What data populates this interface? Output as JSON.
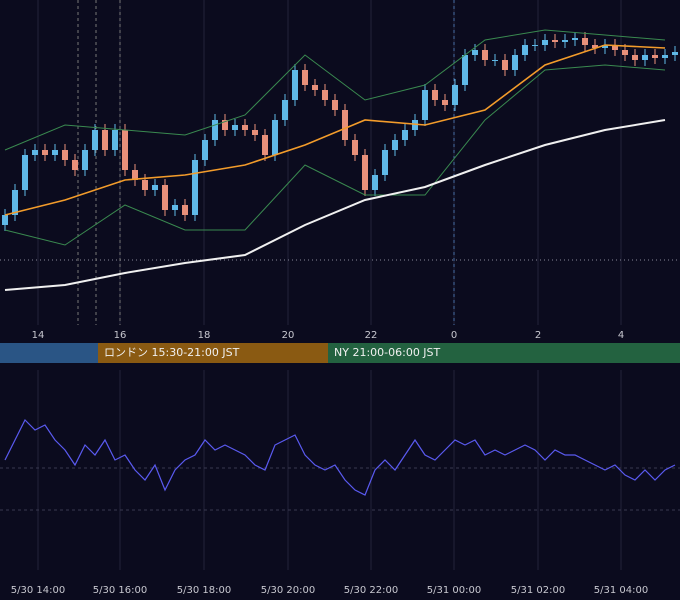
{
  "chart_data": [
    {
      "type": "candlestick",
      "xlim": [
        -0.5,
        67.5
      ],
      "ylim": [
        0,
        325
      ],
      "xticks": [
        {
          "value": 3.3,
          "label": "14"
        },
        {
          "value": 11.5,
          "label": "16"
        },
        {
          "value": 19.9,
          "label": "18"
        },
        {
          "value": 28.3,
          "label": "20"
        },
        {
          "value": 36.6,
          "label": "22"
        },
        {
          "value": 44.9,
          "label": "0"
        },
        {
          "value": 53.3,
          "label": "2"
        },
        {
          "value": 61.6,
          "label": "4"
        }
      ],
      "up_color": "#5fb8e6",
      "down_color": "#e8907a",
      "open": [
        100,
        110,
        135,
        170,
        175,
        170,
        175,
        165,
        155,
        175,
        195,
        175,
        195,
        155,
        145,
        135,
        140,
        115,
        120,
        110,
        165,
        185,
        205,
        195,
        200,
        195,
        190,
        170,
        205,
        225,
        255,
        240,
        235,
        225,
        215,
        185,
        170,
        135,
        150,
        175,
        185,
        195,
        205,
        235,
        225,
        220,
        240,
        270,
        275,
        265,
        265,
        255,
        270,
        280,
        280,
        285,
        283,
        285,
        287,
        280,
        277,
        280,
        275,
        270,
        265,
        270,
        267,
        270
      ],
      "high": [
        116,
        141,
        176,
        181,
        181,
        181,
        181,
        171,
        181,
        201,
        201,
        201,
        201,
        161,
        151,
        146,
        146,
        126,
        126,
        171,
        191,
        211,
        211,
        206,
        206,
        201,
        196,
        211,
        231,
        261,
        261,
        246,
        241,
        231,
        221,
        191,
        176,
        156,
        181,
        191,
        201,
        211,
        241,
        241,
        231,
        246,
        276,
        281,
        281,
        271,
        271,
        276,
        286,
        286,
        291,
        291,
        291,
        293,
        293,
        286,
        286,
        286,
        281,
        276,
        276,
        276,
        276,
        279
      ],
      "low": [
        94,
        104,
        129,
        164,
        164,
        164,
        159,
        149,
        149,
        169,
        169,
        169,
        149,
        139,
        129,
        129,
        109,
        109,
        104,
        104,
        159,
        179,
        189,
        189,
        189,
        184,
        164,
        164,
        199,
        219,
        234,
        229,
        219,
        209,
        179,
        164,
        129,
        129,
        144,
        169,
        179,
        189,
        199,
        219,
        214,
        214,
        234,
        264,
        259,
        259,
        249,
        249,
        264,
        274,
        274,
        277,
        277,
        279,
        274,
        271,
        271,
        269,
        264,
        259,
        259,
        261,
        261,
        264
      ],
      "close": [
        110,
        135,
        170,
        175,
        170,
        175,
        165,
        155,
        175,
        195,
        175,
        195,
        155,
        145,
        135,
        140,
        115,
        120,
        110,
        165,
        185,
        205,
        195,
        200,
        195,
        190,
        170,
        205,
        225,
        255,
        240,
        235,
        225,
        215,
        185,
        170,
        135,
        150,
        175,
        185,
        195,
        205,
        235,
        225,
        220,
        240,
        270,
        275,
        265,
        265,
        255,
        270,
        280,
        280,
        285,
        283,
        285,
        287,
        280,
        277,
        280,
        275,
        270,
        265,
        270,
        267,
        270,
        273
      ],
      "lines": [
        {
          "color": "#3a8a50",
          "x": [
            0,
            6,
            12,
            18,
            24,
            30,
            36,
            42,
            48,
            54,
            60,
            66
          ],
          "values": [
            175,
            200,
            195,
            190,
            210,
            270,
            225,
            240,
            285,
            295,
            290,
            285
          ]
        },
        {
          "color": "#3a8a50",
          "x": [
            0,
            6,
            12,
            18,
            24,
            30,
            36,
            42,
            48,
            54,
            60,
            66
          ],
          "values": [
            95,
            80,
            120,
            95,
            95,
            160,
            130,
            130,
            205,
            255,
            260,
            255
          ]
        },
        {
          "color": "#f0f0f0",
          "x": [
            0,
            6,
            12,
            18,
            24,
            30,
            36,
            42,
            48,
            54,
            60,
            66
          ],
          "values": [
            35,
            40,
            52,
            62,
            70,
            100,
            125,
            138,
            160,
            180,
            195,
            205
          ]
        },
        {
          "color": "#f39c2b",
          "x": [
            0,
            6,
            12,
            18,
            24,
            30,
            36,
            42,
            48,
            54,
            60,
            66
          ],
          "values": [
            110,
            125,
            145,
            150,
            160,
            180,
            205,
            200,
            215,
            260,
            280,
            277
          ]
        }
      ],
      "reference_line": 65,
      "vlines": [
        7.3,
        9.1,
        11.5,
        44.9
      ],
      "sessions": [
        {
          "start": -0.5,
          "end": 9.3,
          "color": "#2a5585"
        },
        {
          "start": 9.3,
          "end": 32.3,
          "color": "#8a5a12",
          "label": "ロンドン 15:30-21:00 JST"
        },
        {
          "start": 32.3,
          "end": 67.5,
          "color": "#236240",
          "label": "NY 21:00-06:00 JST"
        }
      ]
    },
    {
      "type": "line",
      "xlim": [
        -0.5,
        67.5
      ],
      "ylim": [
        0,
        200
      ],
      "xticks": [
        {
          "value": 3.3,
          "label": "5/30 14:00"
        },
        {
          "value": 11.5,
          "label": "5/30 16:00"
        },
        {
          "value": 19.9,
          "label": "5/30 18:00"
        },
        {
          "value": 28.3,
          "label": "5/30 20:00"
        },
        {
          "value": 36.6,
          "label": "5/30 22:00"
        },
        {
          "value": 44.9,
          "label": "5/31 00:00"
        },
        {
          "value": 53.3,
          "label": "5/31 02:00"
        },
        {
          "value": 61.6,
          "label": "5/31 04:00"
        }
      ],
      "grid_levels": [
        102,
        60
      ],
      "color": "#5a5af0",
      "values": [
        110,
        130,
        150,
        140,
        145,
        130,
        120,
        105,
        125,
        115,
        130,
        110,
        115,
        100,
        90,
        105,
        80,
        100,
        110,
        115,
        130,
        120,
        125,
        120,
        115,
        105,
        100,
        125,
        130,
        135,
        115,
        105,
        100,
        105,
        90,
        80,
        75,
        100,
        110,
        100,
        115,
        130,
        115,
        110,
        120,
        130,
        125,
        130,
        115,
        120,
        115,
        120,
        125,
        120,
        110,
        120,
        115,
        115,
        110,
        105,
        100,
        105,
        95,
        90,
        100,
        90,
        100,
        105
      ]
    }
  ]
}
